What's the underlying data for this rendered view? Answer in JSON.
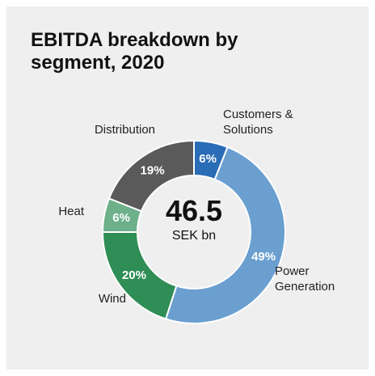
{
  "chart_data": {
    "type": "donut",
    "title": "EBITDA breakdown by segment, 2020",
    "categories": [
      "Customers & Solutions",
      "Power Generation",
      "Wind",
      "Heat",
      "Distribution"
    ],
    "values": [
      6,
      49,
      20,
      6,
      19
    ],
    "value_labels": [
      "6%",
      "49%",
      "20%",
      "6%",
      "19%"
    ],
    "colors": [
      "#2a6cb6",
      "#6a9fd0",
      "#2f8d56",
      "#6db08a",
      "#5a5a5a"
    ],
    "center_value": 46.5,
    "center_label": "SEK bn"
  }
}
